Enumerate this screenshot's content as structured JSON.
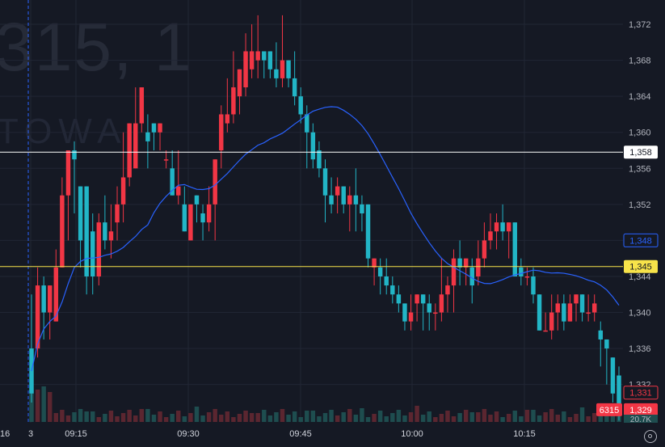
{
  "watermark": {
    "symbol_fragment": "315, 1",
    "name_fragment": "TOWA"
  },
  "chart_data": {
    "type": "candlestick",
    "interval": "1",
    "y_axis": {
      "ticks": [
        1332,
        1336,
        1340,
        1344,
        1348,
        1352,
        1356,
        1360,
        1364,
        1368,
        1372
      ],
      "range": [
        1328.2,
        1373.8
      ]
    },
    "x_axis": {
      "ticks": [
        "3",
        "09:15",
        "09:30",
        "09:45",
        "10:00",
        "10:15"
      ]
    },
    "horizontal_lines": [
      {
        "label": "1,358",
        "value": 1357.8,
        "color": "#ffffff"
      },
      {
        "label": "1,345",
        "value": 1345.1,
        "color": "#f7e34a"
      }
    ],
    "price_labels": [
      {
        "text": "1,348",
        "value": 1348.0,
        "style": "ma"
      },
      {
        "text": "1,331",
        "value": 1331.1,
        "style": "prev"
      },
      {
        "text": "1,329",
        "value": 1329.2,
        "style": "last"
      }
    ],
    "volume_labels": [
      {
        "text": "6315",
        "style": "volume"
      },
      {
        "text": "20.7K",
        "style": "volume-small"
      }
    ],
    "left_edge_label": "16",
    "colors": {
      "up": "#f23645",
      "down": "#22ab94",
      "up_candle": "#f23645",
      "down_candle": "#22b5c6",
      "ma": "#2962ff",
      "grid": "#212634",
      "background": "#151924"
    },
    "candles": [
      [
        1336,
        1331,
        1342,
        1330
      ],
      [
        1336,
        1343,
        1345,
        1335
      ],
      [
        1343,
        1340,
        1344,
        1337
      ],
      [
        1340,
        1343,
        1343,
        1337
      ],
      [
        1339,
        1345,
        1347,
        1339
      ],
      [
        1345,
        1353,
        1355,
        1345
      ],
      [
        1353,
        1358,
        1358,
        1348
      ],
      [
        1358,
        1357,
        1359,
        1351
      ],
      [
        1354,
        1348,
        1352,
        1345
      ],
      [
        1354,
        1344,
        1354,
        1342
      ],
      [
        1349,
        1344,
        1351,
        1342
      ],
      [
        1344,
        1350,
        1351,
        1343
      ],
      [
        1350,
        1348,
        1353,
        1347
      ],
      [
        1348,
        1349,
        1352,
        1346
      ],
      [
        1350,
        1352,
        1354,
        1348
      ],
      [
        1352,
        1355,
        1360,
        1350
      ],
      [
        1355,
        1361,
        1360,
        1354
      ],
      [
        1356,
        1361,
        1365,
        1356
      ],
      [
        1361,
        1365,
        1365,
        1360
      ],
      [
        1360,
        1359,
        1362,
        1356
      ],
      [
        1361,
        1360,
        1361,
        1358
      ],
      [
        1360,
        1361,
        1361,
        1358
      ],
      [
        1357,
        1357,
        1358,
        1356
      ],
      [
        1356,
        1353,
        1358,
        1356
      ],
      [
        1353,
        1354,
        1358,
        1352
      ],
      [
        1352,
        1349,
        1354,
        1350
      ],
      [
        1348,
        1352,
        1352,
        1348
      ],
      [
        1353,
        1352,
        1353,
        1350
      ],
      [
        1351,
        1350,
        1352,
        1348
      ],
      [
        1350,
        1352,
        1354,
        1349
      ],
      [
        1352,
        1357,
        1357,
        1348
      ],
      [
        1358,
        1362,
        1363,
        1356
      ],
      [
        1361,
        1362,
        1366,
        1360
      ],
      [
        1362,
        1365,
        1369,
        1361
      ],
      [
        1364,
        1367,
        1367,
        1362
      ],
      [
        1365,
        1369,
        1371,
        1364
      ],
      [
        1367,
        1369,
        1372,
        1366
      ],
      [
        1368,
        1369,
        1373,
        1366
      ],
      [
        1369,
        1368,
        1368,
        1366
      ],
      [
        1369,
        1367,
        1368,
        1366
      ],
      [
        1367,
        1366,
        1370,
        1365
      ],
      [
        1366,
        1368,
        1373,
        1365
      ],
      [
        1368,
        1366,
        1368,
        1365
      ],
      [
        1366,
        1364,
        1369,
        1363
      ],
      [
        1364,
        1362,
        1365,
        1361
      ],
      [
        1362,
        1360,
        1363,
        1356
      ],
      [
        1360,
        1357,
        1361,
        1356
      ],
      [
        1358,
        1356,
        1359,
        1355
      ],
      [
        1356,
        1353,
        1357,
        1350
      ],
      [
        1353,
        1352,
        1355,
        1351
      ],
      [
        1353,
        1354,
        1355,
        1351
      ],
      [
        1354,
        1352,
        1354,
        1351
      ],
      [
        1352,
        1353,
        1354,
        1349
      ],
      [
        1353,
        1352,
        1356,
        1349
      ],
      [
        1352,
        1351,
        1353,
        1349
      ],
      [
        1352,
        1346,
        1352,
        1345
      ],
      [
        1345,
        1346,
        1346,
        1343
      ],
      [
        1345,
        1344,
        1346,
        1342
      ],
      [
        1344,
        1343,
        1346,
        1342
      ],
      [
        1343,
        1342,
        1344,
        1341
      ],
      [
        1342,
        1341,
        1343,
        1340
      ],
      [
        1341,
        1339,
        1341,
        1338
      ],
      [
        1339,
        1340,
        1342,
        1338
      ],
      [
        1341,
        1342,
        1342,
        1339
      ],
      [
        1342,
        1341,
        1342,
        1338
      ],
      [
        1341,
        1340,
        1342,
        1338
      ],
      [
        1340,
        1340,
        1341,
        1338
      ],
      [
        1340,
        1342,
        1346,
        1339
      ],
      [
        1342,
        1343,
        1344,
        1340
      ],
      [
        1343,
        1346,
        1347,
        1340
      ],
      [
        1346,
        1345,
        1348,
        1343
      ],
      [
        1345,
        1346,
        1346,
        1343
      ],
      [
        1345,
        1343,
        1346,
        1341
      ],
      [
        1344,
        1346,
        1348,
        1343
      ],
      [
        1346,
        1348,
        1350,
        1345
      ],
      [
        1348,
        1349,
        1351,
        1347
      ],
      [
        1349,
        1350,
        1351,
        1347
      ],
      [
        1350,
        1349,
        1352,
        1348
      ],
      [
        1349,
        1350,
        1350,
        1346
      ],
      [
        1350,
        1344,
        1350,
        1344
      ],
      [
        1345,
        1344,
        1346,
        1343
      ],
      [
        1344,
        1344,
        1345,
        1343
      ],
      [
        1344,
        1342,
        1345,
        1341
      ],
      [
        1342,
        1338,
        1342,
        1338
      ],
      [
        1338,
        1338,
        1340,
        1338
      ],
      [
        1338,
        1340,
        1342,
        1337
      ],
      [
        1340,
        1341,
        1342,
        1338
      ],
      [
        1341,
        1339,
        1342,
        1338
      ],
      [
        1339,
        1341,
        1342,
        1339
      ],
      [
        1341,
        1342,
        1342,
        1339
      ],
      [
        1342,
        1340,
        1342,
        1339
      ],
      [
        1340,
        1340,
        1342,
        1339
      ],
      [
        1340,
        1341,
        1342,
        1339
      ],
      [
        1338,
        1337,
        1339,
        1334
      ],
      [
        1337,
        1336,
        1337,
        1332
      ],
      [
        1335,
        1331,
        1335,
        1330
      ],
      [
        1333,
        1329,
        1334,
        1328
      ]
    ],
    "candle_layout_note": "open, close, high, low per 1-minute candle"
  }
}
